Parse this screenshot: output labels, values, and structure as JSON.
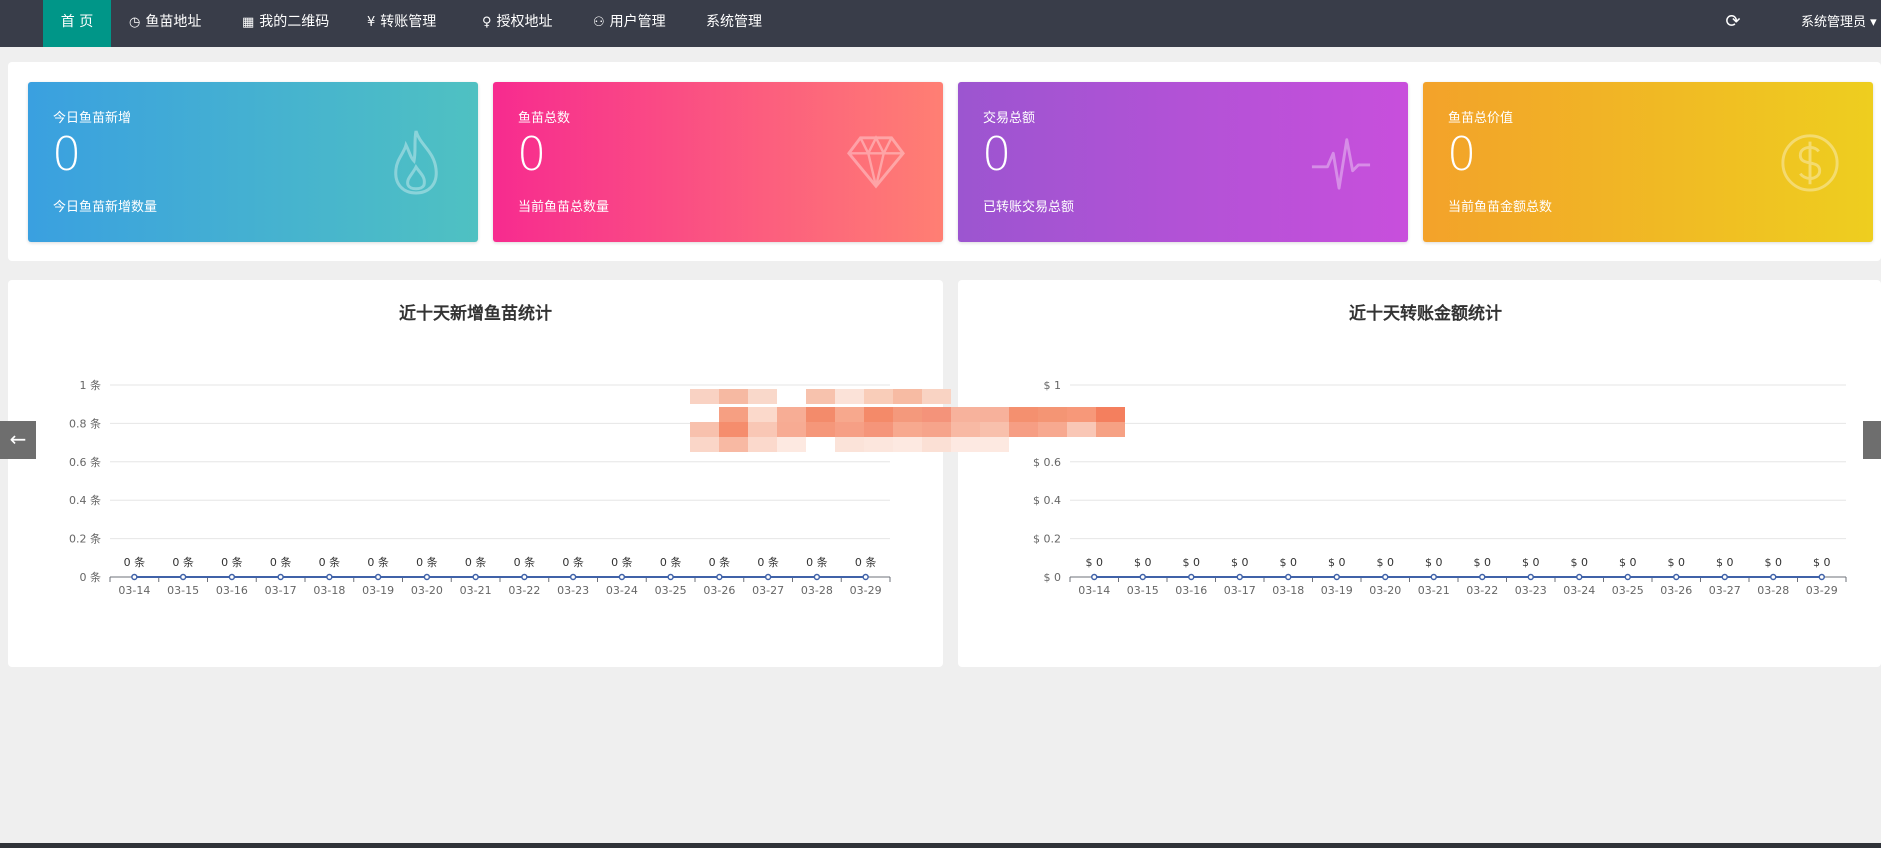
{
  "nav": {
    "home": "首 页",
    "items": [
      {
        "icon": "clock-icon",
        "glyph": "◷",
        "label": "鱼苗地址"
      },
      {
        "icon": "qrcode-icon",
        "glyph": "▦",
        "label": "我的二维码"
      },
      {
        "icon": "yen-icon",
        "glyph": "¥",
        "label": "转账管理"
      },
      {
        "icon": "location-icon",
        "glyph": "♀",
        "label": "授权地址"
      },
      {
        "icon": "user-icon",
        "glyph": "⚇",
        "label": "用户管理"
      },
      {
        "icon": "",
        "glyph": "",
        "label": "系统管理"
      }
    ],
    "user_menu": "系统管理员 ▾",
    "accent": "#009688"
  },
  "stats": [
    {
      "title": "今日鱼苗新增",
      "value": "0",
      "sub": "今日鱼苗新增数量",
      "icon": "fire-icon",
      "gradient": [
        "#3aa0e0",
        "#4fc1c2"
      ]
    },
    {
      "title": "鱼苗总数",
      "value": "0",
      "sub": "当前鱼苗总数量",
      "icon": "diamond-icon",
      "gradient": [
        "#f72b8f",
        "#ff7f73"
      ]
    },
    {
      "title": "交易总额",
      "value": "0",
      "sub": "已转账交易总额",
      "icon": "pulse-icon",
      "gradient": [
        "#9c55d0",
        "#c84fdc"
      ]
    },
    {
      "title": "鱼苗总价值",
      "value": "0",
      "sub": "当前鱼苗金额总数",
      "icon": "dollar-icon",
      "gradient": [
        "#f3a22a",
        "#eece1f"
      ]
    }
  ],
  "chart_data": [
    {
      "type": "line",
      "title": "近十天新增鱼苗统计",
      "x": [
        "03-14",
        "03-15",
        "03-16",
        "03-17",
        "03-18",
        "03-19",
        "03-20",
        "03-21",
        "03-22",
        "03-23",
        "03-24",
        "03-25",
        "03-26",
        "03-27",
        "03-28",
        "03-29"
      ],
      "series": [
        {
          "values": [
            0,
            0,
            0,
            0,
            0,
            0,
            0,
            0,
            0,
            0,
            0,
            0,
            0,
            0,
            0,
            0
          ]
        }
      ],
      "y_ticks": [
        "0 条",
        "0.2 条",
        "0.4 条",
        "0.6 条",
        "0.8 条",
        "1 条"
      ],
      "data_label": "0 条",
      "ylim": [
        0,
        1
      ],
      "grid": true,
      "color": "#4062a8"
    },
    {
      "type": "line",
      "title": "近十天转账金额统计",
      "x": [
        "03-14",
        "03-15",
        "03-16",
        "03-17",
        "03-18",
        "03-19",
        "03-20",
        "03-21",
        "03-22",
        "03-23",
        "03-24",
        "03-25",
        "03-26",
        "03-27",
        "03-28",
        "03-29"
      ],
      "series": [
        {
          "values": [
            0,
            0,
            0,
            0,
            0,
            0,
            0,
            0,
            0,
            0,
            0,
            0,
            0,
            0,
            0,
            0
          ]
        }
      ],
      "y_ticks": [
        "$ 0",
        "$ 0.2",
        "$ 0.4",
        "$ 0.6",
        "$ 0.8",
        "$ 1"
      ],
      "data_label": "$ 0",
      "ylim": [
        0,
        1
      ],
      "grid": true,
      "color": "#4062a8"
    }
  ],
  "carousel": {
    "prev": "←",
    "next": "→"
  }
}
